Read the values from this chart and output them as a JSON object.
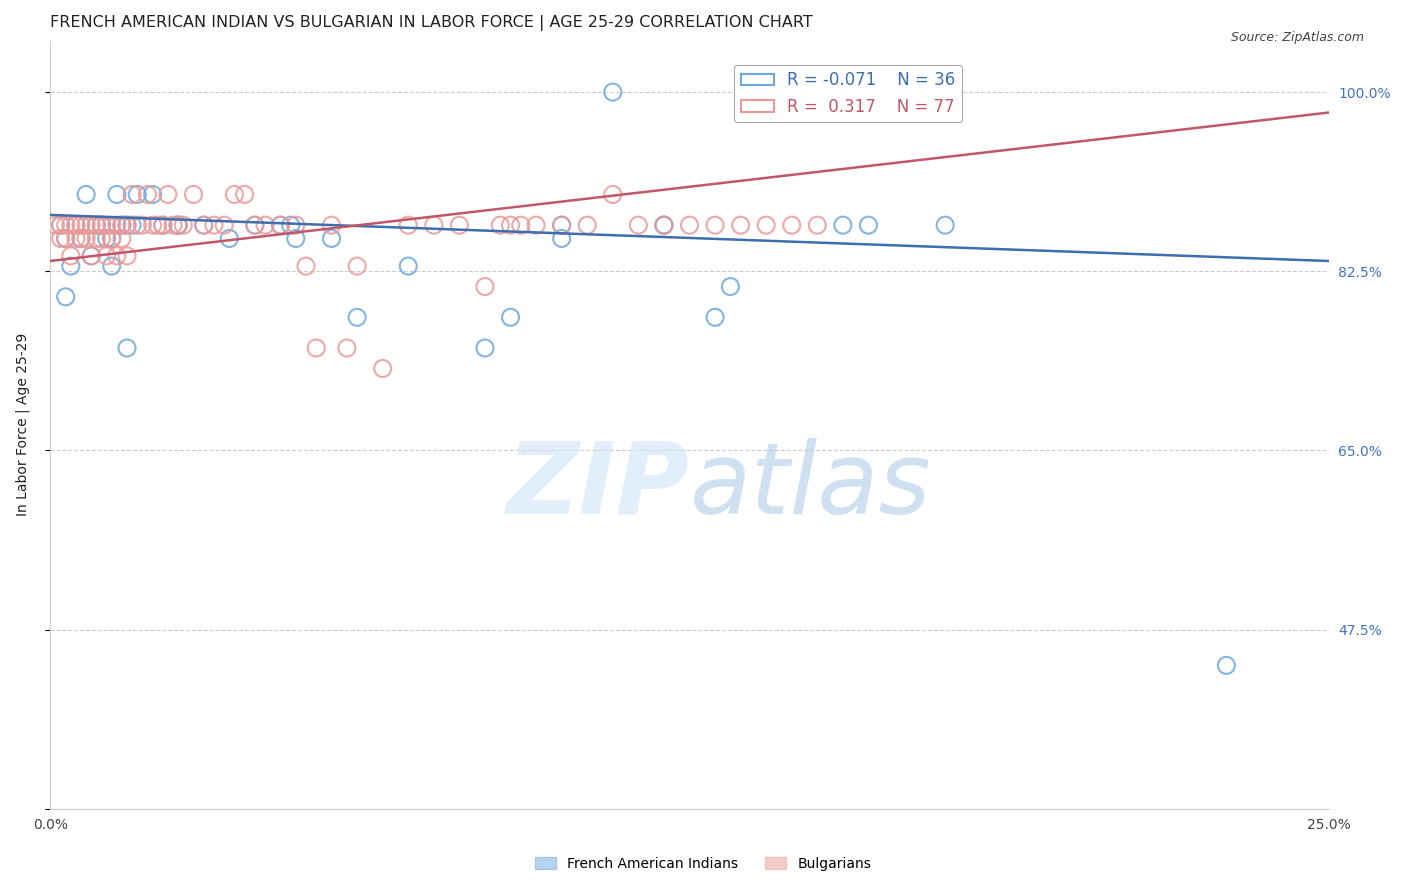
{
  "title": "FRENCH AMERICAN INDIAN VS BULGARIAN IN LABOR FORCE | AGE 25-29 CORRELATION CHART",
  "source": "Source: ZipAtlas.com",
  "ylabel": "In Labor Force | Age 25-29",
  "xlim": [
    0.0,
    0.25
  ],
  "ylim": [
    0.3,
    1.05
  ],
  "xticks": [
    0.0,
    0.05,
    0.1,
    0.15,
    0.2,
    0.25
  ],
  "ytick_positions": [
    1.0,
    0.825,
    0.65,
    0.475,
    0.3
  ],
  "ytick_labels": [
    "100.0%",
    "82.5%",
    "65.0%",
    "47.5%",
    ""
  ],
  "xtick_labels": [
    "0.0%",
    "",
    "",
    "",
    "",
    "25.0%"
  ],
  "blue_color": "#6fa8dc",
  "pink_color": "#ea9999",
  "blue_line_color": "#3d6ead",
  "pink_line_color": "#c0586a",
  "blue_scatter": [
    [
      0.002,
      0.87
    ],
    [
      0.003,
      0.857
    ],
    [
      0.003,
      0.8
    ],
    [
      0.004,
      0.83
    ],
    [
      0.005,
      0.87
    ],
    [
      0.006,
      0.857
    ],
    [
      0.007,
      0.9
    ],
    [
      0.008,
      0.84
    ],
    [
      0.009,
      0.87
    ],
    [
      0.01,
      0.87
    ],
    [
      0.01,
      0.87
    ],
    [
      0.011,
      0.857
    ],
    [
      0.012,
      0.857
    ],
    [
      0.012,
      0.83
    ],
    [
      0.013,
      0.9
    ],
    [
      0.014,
      0.87
    ],
    [
      0.015,
      0.75
    ],
    [
      0.015,
      0.87
    ],
    [
      0.016,
      0.87
    ],
    [
      0.017,
      0.9
    ],
    [
      0.02,
      0.9
    ],
    [
      0.022,
      0.87
    ],
    [
      0.025,
      0.87
    ],
    [
      0.025,
      0.87
    ],
    [
      0.03,
      0.87
    ],
    [
      0.035,
      0.857
    ],
    [
      0.04,
      0.87
    ],
    [
      0.045,
      0.87
    ],
    [
      0.047,
      0.87
    ],
    [
      0.048,
      0.857
    ],
    [
      0.055,
      0.857
    ],
    [
      0.06,
      0.78
    ],
    [
      0.07,
      0.83
    ],
    [
      0.085,
      0.75
    ],
    [
      0.09,
      0.78
    ],
    [
      0.1,
      0.857
    ],
    [
      0.1,
      0.87
    ],
    [
      0.11,
      1.0
    ],
    [
      0.12,
      0.87
    ],
    [
      0.12,
      0.87
    ],
    [
      0.13,
      0.78
    ],
    [
      0.133,
      0.81
    ],
    [
      0.155,
      0.87
    ],
    [
      0.16,
      0.87
    ],
    [
      0.175,
      0.87
    ],
    [
      0.23,
      0.44
    ]
  ],
  "pink_scatter": [
    [
      0.001,
      0.87
    ],
    [
      0.002,
      0.857
    ],
    [
      0.002,
      0.87
    ],
    [
      0.003,
      0.87
    ],
    [
      0.003,
      0.857
    ],
    [
      0.004,
      0.87
    ],
    [
      0.004,
      0.84
    ],
    [
      0.005,
      0.87
    ],
    [
      0.005,
      0.857
    ],
    [
      0.006,
      0.87
    ],
    [
      0.006,
      0.857
    ],
    [
      0.007,
      0.87
    ],
    [
      0.007,
      0.857
    ],
    [
      0.008,
      0.87
    ],
    [
      0.008,
      0.84
    ],
    [
      0.009,
      0.87
    ],
    [
      0.009,
      0.857
    ],
    [
      0.01,
      0.87
    ],
    [
      0.01,
      0.857
    ],
    [
      0.011,
      0.87
    ],
    [
      0.011,
      0.84
    ],
    [
      0.012,
      0.87
    ],
    [
      0.012,
      0.857
    ],
    [
      0.013,
      0.87
    ],
    [
      0.013,
      0.84
    ],
    [
      0.014,
      0.87
    ],
    [
      0.014,
      0.857
    ],
    [
      0.015,
      0.87
    ],
    [
      0.015,
      0.84
    ],
    [
      0.016,
      0.9
    ],
    [
      0.017,
      0.87
    ],
    [
      0.018,
      0.87
    ],
    [
      0.019,
      0.9
    ],
    [
      0.02,
      0.87
    ],
    [
      0.021,
      0.87
    ],
    [
      0.022,
      0.87
    ],
    [
      0.023,
      0.9
    ],
    [
      0.024,
      0.87
    ],
    [
      0.025,
      0.87
    ],
    [
      0.026,
      0.87
    ],
    [
      0.028,
      0.9
    ],
    [
      0.03,
      0.87
    ],
    [
      0.032,
      0.87
    ],
    [
      0.034,
      0.87
    ],
    [
      0.036,
      0.9
    ],
    [
      0.038,
      0.9
    ],
    [
      0.04,
      0.87
    ],
    [
      0.042,
      0.87
    ],
    [
      0.045,
      0.87
    ],
    [
      0.048,
      0.87
    ],
    [
      0.05,
      0.83
    ],
    [
      0.052,
      0.75
    ],
    [
      0.055,
      0.87
    ],
    [
      0.058,
      0.75
    ],
    [
      0.06,
      0.83
    ],
    [
      0.065,
      0.73
    ],
    [
      0.07,
      0.87
    ],
    [
      0.075,
      0.87
    ],
    [
      0.08,
      0.87
    ],
    [
      0.085,
      0.81
    ],
    [
      0.088,
      0.87
    ],
    [
      0.09,
      0.87
    ],
    [
      0.092,
      0.87
    ],
    [
      0.095,
      0.87
    ],
    [
      0.1,
      0.87
    ],
    [
      0.105,
      0.87
    ],
    [
      0.11,
      0.9
    ],
    [
      0.115,
      0.87
    ],
    [
      0.12,
      0.87
    ],
    [
      0.125,
      0.87
    ],
    [
      0.13,
      0.87
    ],
    [
      0.135,
      0.87
    ],
    [
      0.14,
      0.87
    ],
    [
      0.145,
      0.87
    ],
    [
      0.15,
      0.87
    ]
  ],
  "blue_trendline": [
    [
      0.0,
      0.88
    ],
    [
      0.25,
      0.835
    ]
  ],
  "pink_trendline": [
    [
      0.0,
      0.835
    ],
    [
      0.25,
      0.98
    ]
  ],
  "background_color": "#ffffff",
  "grid_color": "#cccccc",
  "title_color": "#222222",
  "axis_label_color": "#222222"
}
